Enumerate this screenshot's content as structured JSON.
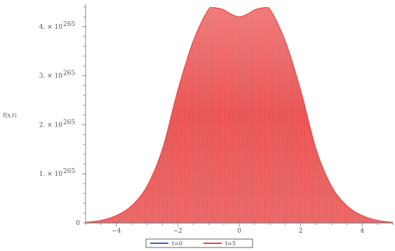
{
  "chart_data": {
    "type": "area",
    "title": "",
    "ylabel": "f(x,t)",
    "xlabel": "",
    "xlim": [
      -5,
      5
    ],
    "ylim": [
      0,
      4.4
    ],
    "x_ticks": [
      -4,
      -2,
      0,
      2,
      4
    ],
    "x_tick_labels": [
      "−4",
      "−2",
      "0",
      "2",
      "4"
    ],
    "y_ticks": [
      1,
      2,
      3,
      4
    ],
    "y_tick_labels": [
      "1. × 10",
      "2. × 10",
      "3. × 10",
      "4. × 10"
    ],
    "y_tick_exponent": "265",
    "grid": false,
    "legend_position": "bottom-center",
    "series": [
      {
        "name": "t=0",
        "color": "#3b5bd6",
        "x": [
          -5,
          -4,
          -3,
          -2,
          -1,
          0,
          1,
          2,
          3,
          4,
          5
        ],
        "values": [
          0,
          0,
          0,
          0,
          0,
          0,
          0,
          0,
          0,
          0,
          0
        ]
      },
      {
        "name": "t=5",
        "color": "#e84848",
        "x": [
          -5,
          -4.5,
          -4,
          -3.5,
          -3,
          -2.5,
          -2,
          -1.5,
          -1,
          -0.75,
          -0.5,
          -0.25,
          0,
          0.25,
          0.5,
          0.75,
          1,
          1.5,
          2,
          2.5,
          3,
          3.5,
          4,
          4.5,
          5
        ],
        "values": [
          0.01,
          0.05,
          0.15,
          0.35,
          0.75,
          1.5,
          2.7,
          3.7,
          4.35,
          4.38,
          4.34,
          4.25,
          4.2,
          4.25,
          4.34,
          4.38,
          4.35,
          3.7,
          2.7,
          1.5,
          0.75,
          0.35,
          0.15,
          0.05,
          0.01
        ]
      }
    ]
  }
}
